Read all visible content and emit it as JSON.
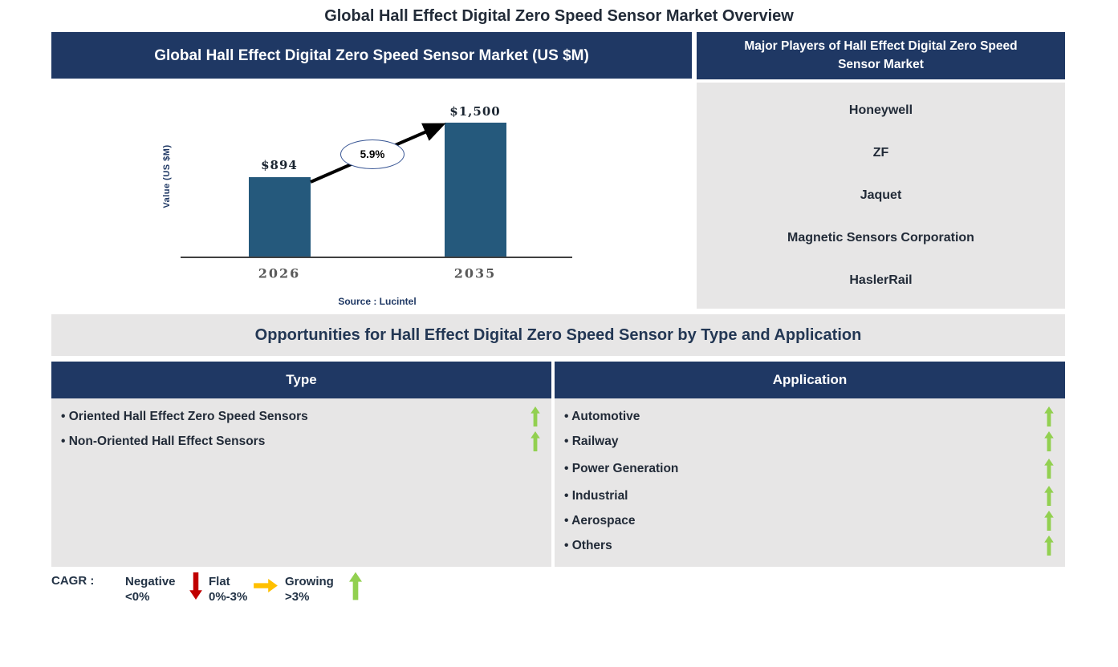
{
  "page": {
    "title": "Global Hall Effect Digital Zero Speed Sensor Market Overview"
  },
  "market_chart": {
    "header": "Global Hall Effect Digital Zero Speed Sensor Market (US $M)",
    "y_axis_label": "Value (US $M)",
    "growth_label": "5.9%",
    "source": "Source : Lucintel"
  },
  "chart_data": {
    "type": "bar",
    "title": "Global Hall Effect Digital Zero Speed Sensor Market (US $M)",
    "categories": [
      "2026",
      "2035"
    ],
    "values": [
      894,
      1500
    ],
    "value_labels": [
      "$894",
      "$1,500"
    ],
    "xlabel": "",
    "ylabel": "Value (US $M)",
    "ylim": [
      0,
      1600
    ],
    "grid": false,
    "annotations": [
      {
        "text": "5.9%",
        "meaning": "CAGR between 2026 and 2035"
      }
    ],
    "source": "Source : Lucintel",
    "bar_color": "#25597C"
  },
  "major_players": {
    "header": "Major Players of Hall Effect Digital Zero Speed Sensor Market",
    "items": [
      "Honeywell",
      "ZF",
      "Jaquet",
      "Magnetic Sensors Corporation",
      "HaslerRail"
    ]
  },
  "opportunities": {
    "banner": "Opportunities for Hall Effect Digital Zero Speed Sensor by Type and Application"
  },
  "type_panel": {
    "header": "Type",
    "items": [
      {
        "label": "Oriented Hall Effect Zero Speed Sensors",
        "trend": "growing"
      },
      {
        "label": "Non-Oriented Hall Effect Sensors",
        "trend": "growing"
      }
    ]
  },
  "application_panel": {
    "header": "Application",
    "items": [
      {
        "label": "Automotive",
        "trend": "growing"
      },
      {
        "label": "Railway",
        "trend": "growing"
      },
      {
        "label": "Power Generation",
        "trend": "growing"
      },
      {
        "label": "Industrial",
        "trend": "growing"
      },
      {
        "label": "Aerospace",
        "trend": "growing"
      },
      {
        "label": "Others",
        "trend": "growing"
      }
    ]
  },
  "legend": {
    "label": "CAGR :",
    "items": [
      {
        "name": "Negative",
        "range": "<0%",
        "direction": "down"
      },
      {
        "name": "Flat",
        "range": "0%-3%",
        "direction": "right"
      },
      {
        "name": "Growing",
        "range": ">3%",
        "direction": "up"
      }
    ]
  },
  "colors": {
    "header_bg": "#1F3864",
    "panel_bg": "#E7E6E6",
    "bar": "#25597C",
    "growing_green": "#92D050",
    "negative_red": "#C00000",
    "flat_yellow": "#FFC000",
    "trend_arrow": "#000000",
    "ellipse_border": "#3A5795"
  }
}
